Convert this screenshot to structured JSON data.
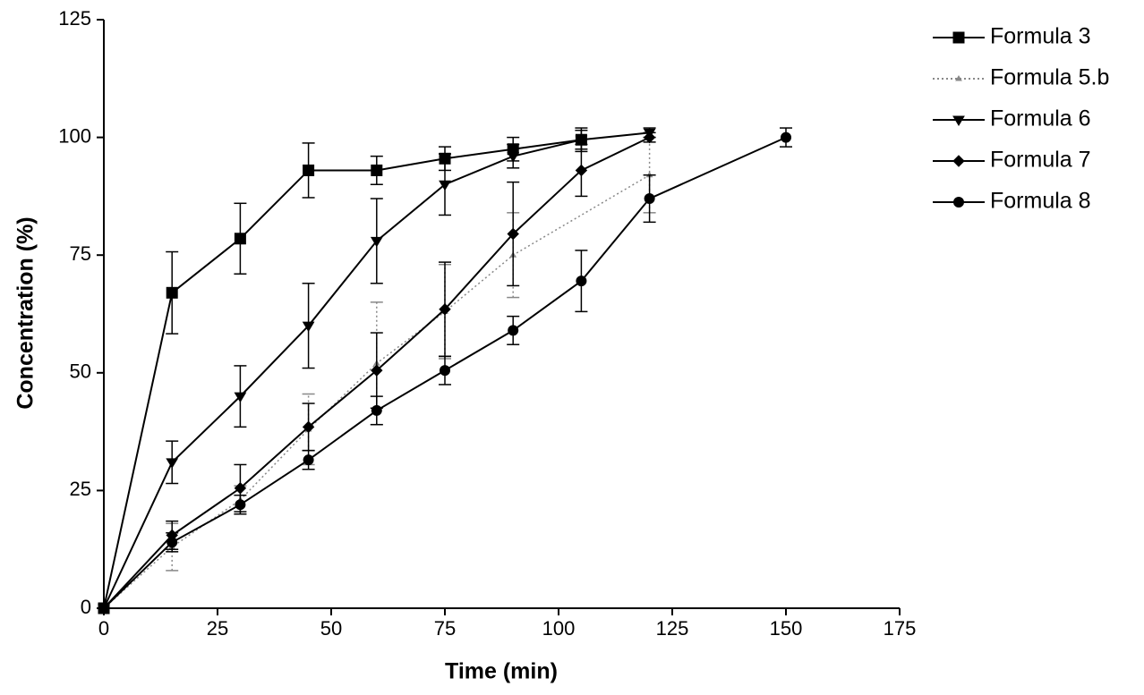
{
  "chart_data": {
    "type": "line",
    "x_label": "Time (min)",
    "y_label": "Concentration (%)",
    "xlim": [
      0,
      175
    ],
    "xticks": [
      0,
      25,
      50,
      75,
      100,
      125,
      150,
      175
    ],
    "ylim": [
      0,
      125
    ],
    "yticks": [
      0,
      25,
      50,
      75,
      100,
      125
    ],
    "series": [
      {
        "name": "Formula 3",
        "color": "#000000",
        "marker": "square",
        "dash": "solid",
        "x": [
          0,
          15,
          30,
          45,
          60,
          75,
          90,
          105
        ],
        "values": [
          0,
          67,
          78.5,
          93,
          93,
          95.5,
          97.5,
          99.5
        ],
        "errors": [
          null,
          8.7,
          7.5,
          5.8,
          3,
          2.5,
          2.5,
          2.5
        ]
      },
      {
        "name": "Formula 5.b",
        "color": "#888888",
        "marker": "triangle-up",
        "dash": "dotted",
        "x": [
          0,
          15,
          30,
          45,
          60,
          75,
          90,
          120
        ],
        "values": [
          0,
          13,
          23,
          38,
          52,
          63,
          75,
          92
        ],
        "errors": [
          null,
          5,
          3,
          7.5,
          13,
          10,
          9,
          8
        ]
      },
      {
        "name": "Formula 6",
        "color": "#000000",
        "marker": "triangle-down",
        "dash": "solid",
        "x": [
          0,
          15,
          30,
          45,
          60,
          75,
          90,
          105,
          120
        ],
        "values": [
          0,
          31,
          45,
          60,
          78,
          90,
          96,
          99.5,
          101
        ],
        "errors": [
          null,
          4.5,
          6.5,
          9,
          9,
          6.5,
          2.5,
          2,
          1
        ]
      },
      {
        "name": "Formula 7",
        "color": "#000000",
        "marker": "diamond",
        "dash": "solid",
        "x": [
          0,
          15,
          30,
          45,
          60,
          75,
          90,
          105,
          120
        ],
        "values": [
          0,
          15.5,
          25.5,
          38.5,
          50.5,
          63.5,
          79.5,
          93,
          100
        ],
        "errors": [
          null,
          3,
          5,
          5,
          8,
          10,
          11,
          5.5,
          1
        ]
      },
      {
        "name": "Formula 8",
        "color": "#000000",
        "marker": "circle",
        "dash": "solid",
        "x": [
          0,
          15,
          30,
          45,
          60,
          75,
          90,
          105,
          120,
          150
        ],
        "values": [
          0,
          14,
          22,
          31.5,
          42,
          50.5,
          59,
          69.5,
          87,
          100
        ],
        "errors": [
          null,
          2,
          2,
          2,
          3,
          3,
          3,
          6.5,
          5,
          2
        ]
      }
    ]
  }
}
